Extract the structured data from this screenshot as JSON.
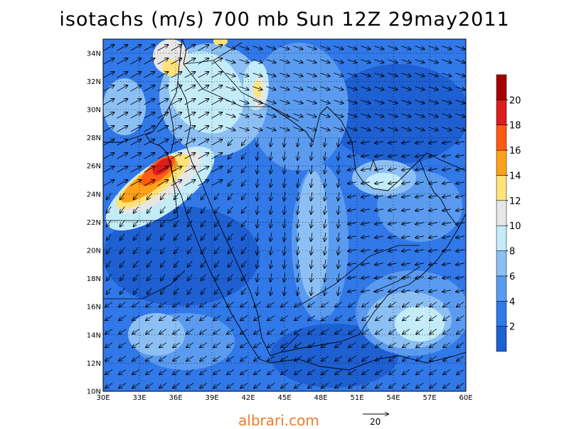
{
  "title": "isotachs (m/s) 700 mb Sun 12Z 29may2011",
  "watermark": "albrari.com",
  "map": {
    "lon_range": [
      30,
      60
    ],
    "lat_range": [
      10,
      35
    ],
    "x_ticks": [
      "30E",
      "33E",
      "36E",
      "39E",
      "42E",
      "45E",
      "48E",
      "51E",
      "54E",
      "57E",
      "60E"
    ],
    "y_ticks": [
      "10N",
      "12N",
      "14N",
      "16N",
      "18N",
      "20N",
      "22N",
      "24N",
      "26N",
      "28N",
      "30N",
      "32N",
      "34N"
    ],
    "grid": true,
    "wind_speed_max": {
      "lon": 35.0,
      "lat": 25.8,
      "speed_ms": 20
    }
  },
  "colorbar": {
    "labels": [
      "2",
      "4",
      "6",
      "8",
      "10",
      "12",
      "14",
      "16",
      "18",
      "20"
    ],
    "colors": [
      "#1e5fd2",
      "#3178e8",
      "#5a9bf0",
      "#8cc0f5",
      "#c3ecf8",
      "#e6e6e6",
      "#ffe37a",
      "#ffa11a",
      "#ff5a14",
      "#dc1e1e",
      "#a50000"
    ]
  },
  "reference_vector": {
    "label": "20",
    "speed_ms": 20
  }
}
